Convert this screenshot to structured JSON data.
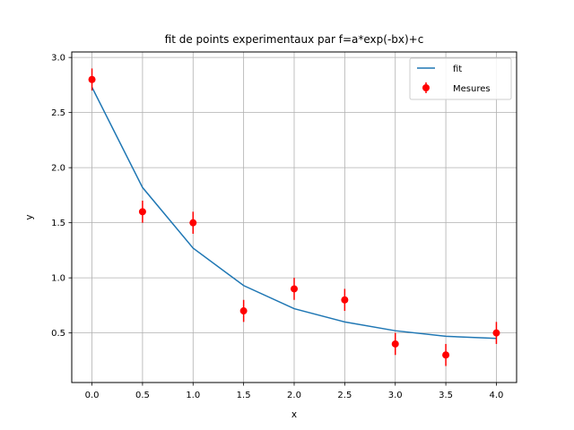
{
  "chart_data": {
    "type": "line",
    "title": "fit de points experimentaux par f=a*exp(-bx)+c",
    "xlabel": "x",
    "ylabel": "y",
    "xlim": [
      -0.2,
      4.2
    ],
    "ylim": [
      0.05,
      3.05
    ],
    "xticks": [
      0.0,
      0.5,
      1.0,
      1.5,
      2.0,
      2.5,
      3.0,
      3.5,
      4.0
    ],
    "xtick_labels": [
      "0.0",
      "0.5",
      "1.0",
      "1.5",
      "2.0",
      "2.5",
      "3.0",
      "3.5",
      "4.0"
    ],
    "yticks": [
      0.5,
      1.0,
      1.5,
      2.0,
      2.5,
      3.0
    ],
    "ytick_labels": [
      "0.5",
      "1.0",
      "1.5",
      "2.0",
      "2.5",
      "3.0"
    ],
    "grid": true,
    "legend_position": "top-right",
    "series": [
      {
        "name": "fit",
        "kind": "line",
        "color": "#1f77b4",
        "x": [
          0.0,
          0.5,
          1.0,
          1.5,
          2.0,
          2.5,
          3.0,
          3.5,
          4.0
        ],
        "y": [
          2.73,
          1.82,
          1.27,
          0.93,
          0.72,
          0.6,
          0.52,
          0.47,
          0.45
        ]
      },
      {
        "name": "Mesures",
        "kind": "errorbar",
        "color": "#ff0000",
        "x": [
          0.0,
          0.5,
          1.0,
          1.5,
          2.0,
          2.5,
          3.0,
          3.5,
          4.0
        ],
        "y": [
          2.8,
          1.6,
          1.5,
          0.7,
          0.9,
          0.8,
          0.4,
          0.3,
          0.5
        ],
        "yerr": [
          0.1,
          0.1,
          0.1,
          0.1,
          0.1,
          0.1,
          0.1,
          0.1,
          0.1
        ]
      }
    ]
  }
}
